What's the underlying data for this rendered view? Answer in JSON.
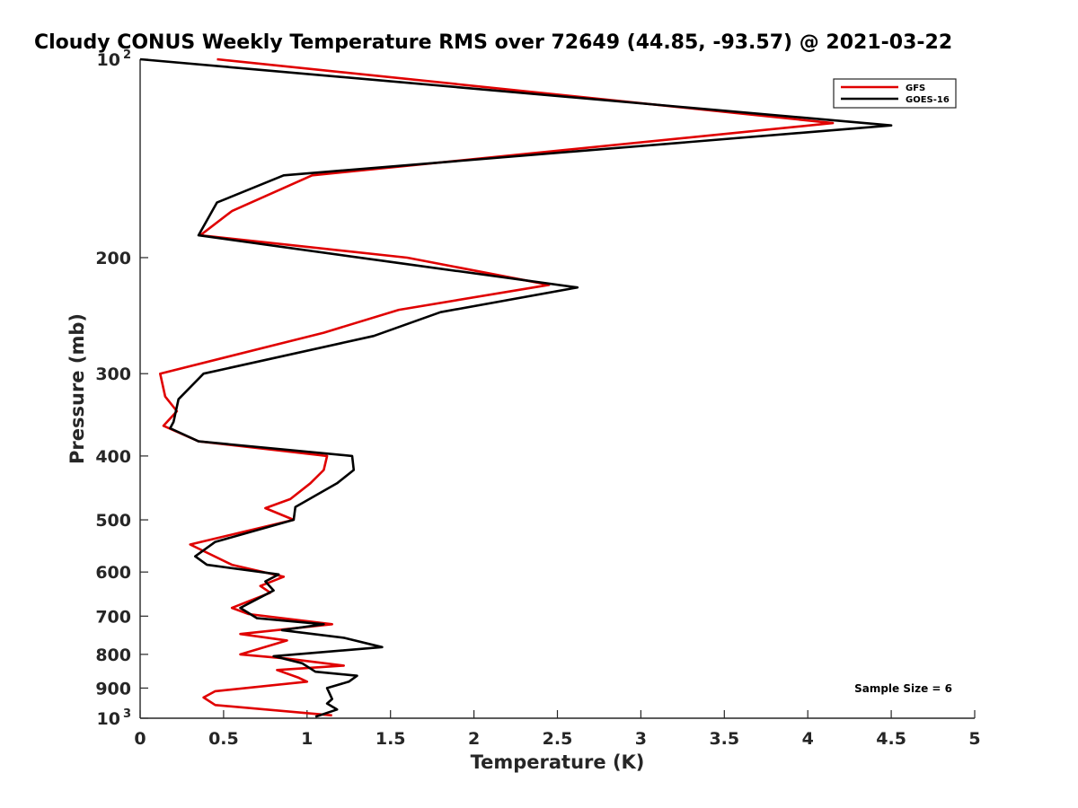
{
  "chart_data": {
    "type": "line",
    "title": "Cloudy CONUS Weekly Temperature RMS over 72649 (44.85, -93.57) @ 2021-03-22",
    "xlabel": "Temperature (K)",
    "ylabel": "Pressure (mb)",
    "xlim": [
      0,
      5
    ],
    "ylim": [
      100,
      1000
    ],
    "y_scale": "log",
    "y_reversed": true,
    "x_ticks": [
      0,
      0.5,
      1,
      1.5,
      2,
      2.5,
      3,
      3.5,
      4,
      4.5,
      5
    ],
    "x_tick_labels": [
      "0",
      "0.5",
      "1",
      "1.5",
      "2",
      "2.5",
      "3",
      "3.5",
      "4",
      "4.5",
      "5"
    ],
    "y_ticks": [
      100,
      200,
      300,
      400,
      500,
      600,
      700,
      800,
      900,
      1000
    ],
    "y_tick_labels": [
      {
        "base": "10",
        "exp": "2"
      },
      {
        "base": "200"
      },
      {
        "base": "300"
      },
      {
        "base": "400"
      },
      {
        "base": "500"
      },
      {
        "base": "600"
      },
      {
        "base": "700"
      },
      {
        "base": "800"
      },
      {
        "base": "900"
      },
      {
        "base": "10",
        "exp": "3"
      }
    ],
    "grid": false,
    "legend_position": "top-right",
    "annotation": "Sample Size = 6",
    "series": [
      {
        "name": "GFS",
        "color": "#e00000",
        "points": [
          [
            0.46,
            100
          ],
          [
            4.15,
            125
          ],
          [
            1.03,
            150
          ],
          [
            0.55,
            170
          ],
          [
            0.36,
            185
          ],
          [
            1.6,
            200
          ],
          [
            2.45,
            220
          ],
          [
            1.55,
            240
          ],
          [
            1.1,
            260
          ],
          [
            0.12,
            300
          ],
          [
            0.15,
            325
          ],
          [
            0.22,
            342
          ],
          [
            0.14,
            360
          ],
          [
            0.35,
            380
          ],
          [
            1.12,
            400
          ],
          [
            1.1,
            420
          ],
          [
            1.02,
            440
          ],
          [
            0.9,
            465
          ],
          [
            0.75,
            480
          ],
          [
            0.92,
            500
          ],
          [
            0.3,
            545
          ],
          [
            0.55,
            585
          ],
          [
            0.86,
            610
          ],
          [
            0.72,
            630
          ],
          [
            0.78,
            645
          ],
          [
            0.55,
            680
          ],
          [
            0.65,
            695
          ],
          [
            1.15,
            720
          ],
          [
            0.6,
            745
          ],
          [
            0.88,
            762
          ],
          [
            0.6,
            800
          ],
          [
            0.88,
            812
          ],
          [
            1.22,
            832
          ],
          [
            0.82,
            845
          ],
          [
            0.95,
            868
          ],
          [
            1.0,
            880
          ],
          [
            0.45,
            910
          ],
          [
            0.38,
            930
          ],
          [
            0.45,
            955
          ],
          [
            1.15,
            990
          ]
        ]
      },
      {
        "name": "GOES-16",
        "color": "#000000",
        "points": [
          [
            0.0,
            100
          ],
          [
            4.5,
            126
          ],
          [
            0.86,
            150
          ],
          [
            0.46,
            165
          ],
          [
            0.35,
            185
          ],
          [
            1.5,
            203
          ],
          [
            2.62,
            222
          ],
          [
            1.8,
            242
          ],
          [
            1.4,
            263
          ],
          [
            0.38,
            300
          ],
          [
            0.23,
            328
          ],
          [
            0.2,
            355
          ],
          [
            0.18,
            363
          ],
          [
            0.35,
            380
          ],
          [
            1.27,
            400
          ],
          [
            1.28,
            420
          ],
          [
            1.18,
            440
          ],
          [
            0.93,
            478
          ],
          [
            0.92,
            500
          ],
          [
            0.45,
            540
          ],
          [
            0.33,
            568
          ],
          [
            0.4,
            585
          ],
          [
            0.83,
            605
          ],
          [
            0.75,
            620
          ],
          [
            0.8,
            640
          ],
          [
            0.6,
            680
          ],
          [
            0.7,
            705
          ],
          [
            1.1,
            720
          ],
          [
            0.85,
            735
          ],
          [
            1.22,
            755
          ],
          [
            1.45,
            780
          ],
          [
            0.8,
            805
          ],
          [
            0.97,
            825
          ],
          [
            1.05,
            850
          ],
          [
            1.3,
            862
          ],
          [
            1.25,
            880
          ],
          [
            1.12,
            900
          ],
          [
            1.15,
            935
          ],
          [
            1.12,
            950
          ],
          [
            1.18,
            970
          ],
          [
            1.05,
            995
          ]
        ]
      }
    ]
  }
}
